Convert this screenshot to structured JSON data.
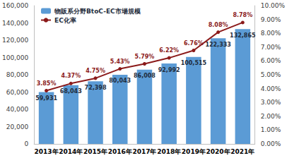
{
  "chart_data": {
    "type": "bar",
    "categories": [
      "2013年",
      "2014年",
      "2015年",
      "2016年",
      "2017年",
      "2018年",
      "2019年",
      "2020年",
      "2021年"
    ],
    "series": [
      {
        "name": "物販系分野BtoC-EC市場規模",
        "type": "bar",
        "color": "#5b9bd5",
        "values": [
          59931,
          68043,
          72398,
          80043,
          86008,
          92992,
          100515,
          122333,
          132865
        ],
        "value_labels": [
          "59,931",
          "68,043",
          "72,398",
          "80,043",
          "86,008",
          "92,992",
          "100,515",
          "122,333",
          "132,865"
        ]
      },
      {
        "name": "EC化率",
        "type": "line",
        "axis": "y2",
        "color": "#8b1a1a",
        "marker": "circle",
        "values": [
          3.85,
          4.37,
          4.75,
          5.43,
          5.79,
          6.22,
          6.76,
          8.08,
          8.78
        ],
        "value_labels": [
          "3.85%",
          "4.37%",
          "4.75%",
          "5.43%",
          "5.79%",
          "6.22%",
          "6.76%",
          "8.08%",
          "8.78%"
        ]
      }
    ],
    "ylim": [
      0,
      160000
    ],
    "yticks": [
      0,
      {
        "value": 20000,
        "label": "20,000"
      },
      {
        "value": 40000,
        "label": "40,000"
      },
      {
        "value": 60000,
        "label": "60,000"
      },
      {
        "value": 80000,
        "label": "80,000"
      },
      {
        "value": 100000,
        "label": "100,000"
      },
      {
        "value": 120000,
        "label": "120,000"
      },
      {
        "value": 140000,
        "label": "140,000"
      },
      {
        "value": 160000,
        "label": "160,000"
      }
    ],
    "y2lim": [
      0,
      10
    ],
    "y2ticks": [
      {
        "value": 0,
        "label": "0.00%"
      },
      {
        "value": 1,
        "label": "1.00%"
      },
      {
        "value": 2,
        "label": "2.00%"
      },
      {
        "value": 3,
        "label": "3.00%"
      },
      {
        "value": 4,
        "label": "4.00%"
      },
      {
        "value": 5,
        "label": "5.00%"
      },
      {
        "value": 6,
        "label": "6.00%"
      },
      {
        "value": 7,
        "label": "7.00%"
      },
      {
        "value": 8,
        "label": "8.00%"
      },
      {
        "value": 9,
        "label": "9.00%"
      },
      {
        "value": 10,
        "label": "10.00%"
      }
    ],
    "grid": false,
    "legend": "upper left",
    "data_labels": true
  }
}
